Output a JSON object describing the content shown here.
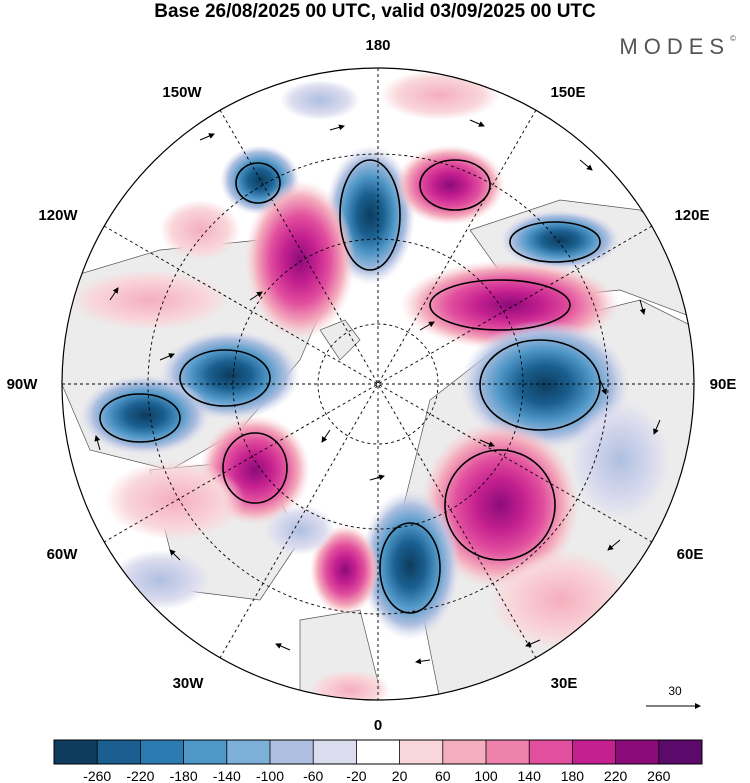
{
  "title": "Base 26/08/2025 00 UTC, valid 03/09/2025 00 UTC",
  "logo": "MODES",
  "logo_mark": "©",
  "longitude_labels": {
    "n180": "180",
    "n150e": "150E",
    "n120e": "120E",
    "n90e": "90E",
    "n60e": "60E",
    "n30e": "30E",
    "n0": "0",
    "n30w": "30W",
    "n60w": "60W",
    "n90w": "90W",
    "n120w": "120W",
    "n150w": "150W"
  },
  "wind_reference": "30",
  "colorbar": {
    "ticks": [
      "-260",
      "-220",
      "-180",
      "-140",
      "-100",
      "-60",
      "-20",
      "20",
      "60",
      "100",
      "140",
      "180",
      "220",
      "260"
    ],
    "colors": [
      "#0d3c5e",
      "#1a5f8f",
      "#2c7bb0",
      "#4f97c7",
      "#7eb1d9",
      "#aebfe0",
      "#dcdcef",
      "#ffffff",
      "#f9d6da",
      "#f4aebd",
      "#ee82aa",
      "#e24f9e",
      "#c4208f",
      "#8c0b7a",
      "#5b0a6c"
    ]
  },
  "map": {
    "land_color": "#ececec",
    "positive_color": "#e24f9e",
    "negative_color": "#2c7bb0"
  }
}
